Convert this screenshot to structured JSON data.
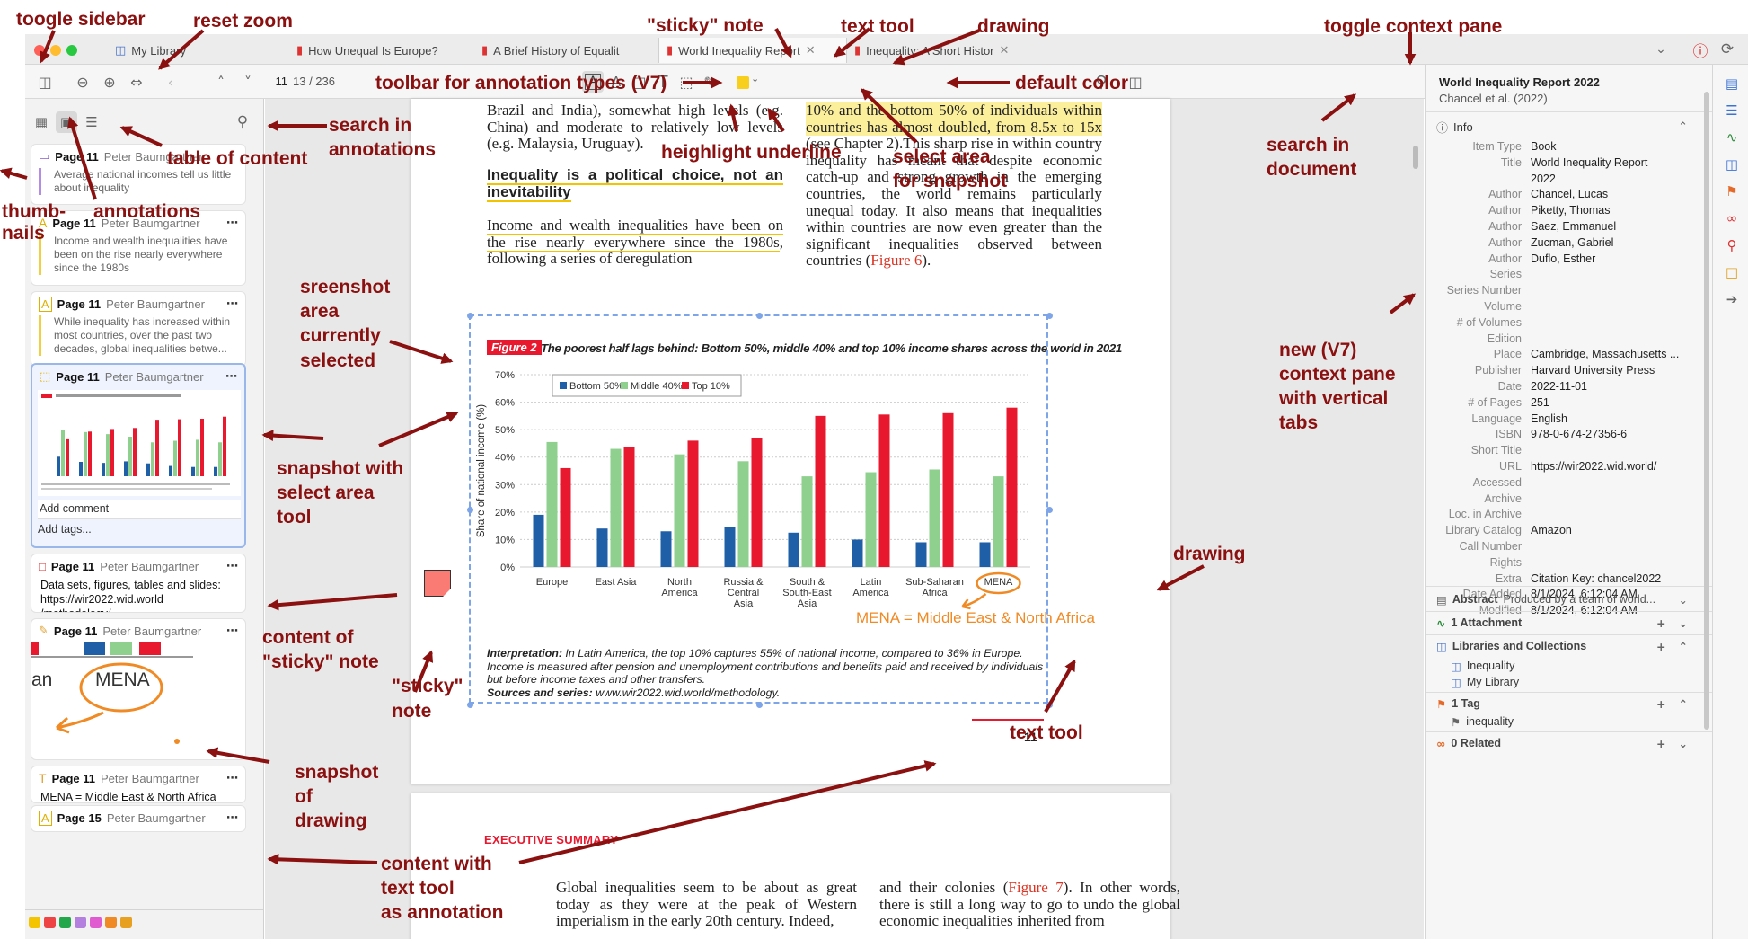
{
  "tabs": [
    {
      "label": "My Library"
    },
    {
      "label": "How Unequal Is Europe?"
    },
    {
      "label": "A Brief History of Equalit"
    },
    {
      "label": "World Inequality Report"
    },
    {
      "label": "Inequality: A Short Histor"
    }
  ],
  "toolbar": {
    "page_number": "11",
    "page_count": "13 / 236"
  },
  "sidebar": {
    "cards": [
      {
        "page": "Page 11",
        "author": "Peter Baumgartner",
        "text": "Average national incomes tell us little about inequality"
      },
      {
        "page": "Page 11",
        "author": "Peter Baumgartner",
        "text": "Income and wealth inequalities have been on the rise nearly everywhere since the 1980s"
      },
      {
        "page": "Page 11",
        "author": "Peter Baumgartner",
        "text": "While inequality has increased within most countries, over the past two decades, global inequalities betwe..."
      },
      {
        "page": "Page 11",
        "author": "Peter Baumgartner",
        "comment": "Add comment",
        "tags": "Add tags..."
      },
      {
        "page": "Page 11",
        "author": "Peter Baumgartner",
        "text": "Data sets, figures, tables and slides: https://wir2022.wid.world /methodology/"
      },
      {
        "page": "Page 11",
        "author": "Peter Baumgartner",
        "drawing_label": "MENA",
        "drawing_prefix": "an"
      },
      {
        "page": "Page 11",
        "author": "Peter Baumgartner",
        "text": "MENA = Middle East & North Africa"
      },
      {
        "page": "Page 15",
        "author": "Peter Baumgartner"
      }
    ],
    "colors": [
      "#f5c400",
      "#ef4444",
      "#22a84a",
      "#b380e0",
      "#e05bd0",
      "#f08a24",
      "#e8a020"
    ]
  },
  "doc": {
    "col1a": "Brazil and India), somewhat high levels (e.g. China) and moderate to relatively low levels (e.g. Malaysia, Uruguay).",
    "heading": "Inequality is a political choice, not an inevitability",
    "col1b_hl": "Income and wealth inequalities have been on the rise nearly everywhere since the 1980s",
    "col1b_rest": ", following a series of deregulation",
    "col2_hl": "10% and the bottom 50% of individuals within countries has almost doubled, from 8.5x to 15x",
    "col2_rest": " (see Chapter 2).This sharp rise in within country inequality has meant that despite economic catch-up and strong growth in the emerging countries, the world remains particularly unequal today. It also means that inequalities within countries are now even greater than the significant inequalities observed between countries (",
    "col2_fig": "Figure 6",
    "col2_end": ").",
    "page_num": "11",
    "exec": "EXECUTIVE SUMMARY",
    "p2c1": "Global inequalities seem to be about as great today as they were at the peak of Western imperialism in the early 20th century. Indeed,",
    "p2c2a": "and their colonies (",
    "p2c2fig": "Figure 7",
    "p2c2b": "). In other words, there is still a long way to go to undo the global economic inequalities inherited from"
  },
  "chart_data": {
    "type": "bar",
    "figure_label": "Figure 2",
    "title": "The poorest half lags behind: Bottom 50%, middle 40% and top 10% income shares across the world in 2021",
    "ylabel": "Share of national income (%)",
    "ylim": [
      0,
      70
    ],
    "yticks": [
      "0%",
      "10%",
      "20%",
      "30%",
      "40%",
      "50%",
      "60%",
      "70%"
    ],
    "categories": [
      "Europe",
      "East Asia",
      "North America",
      "Russia & Central Asia",
      "South & South-East Asia",
      "Latin America",
      "Sub-Saharan Africa",
      "MENA"
    ],
    "series": [
      {
        "name": "Bottom 50%",
        "color": "#1f5fa8",
        "values": [
          19,
          14,
          13,
          14.5,
          12.5,
          10,
          9,
          9
        ]
      },
      {
        "name": "Middle 40%",
        "color": "#8fd08f",
        "values": [
          45.5,
          43,
          41,
          38.5,
          33,
          34.5,
          35.5,
          33
        ]
      },
      {
        "name": "Top 10%",
        "color": "#e8182e",
        "values": [
          36,
          43.5,
          46,
          47,
          55,
          55.5,
          56,
          58
        ]
      }
    ],
    "legend": "top-left",
    "interpretation_label": "Interpretation:",
    "interpretation": " In Latin America, the top 10% captures 55% of national income, compared to 36% in Europe. Income is measured after pension and unemployment contributions and benefits paid and received by individuals but before income taxes and other transfers.",
    "sources_label": "Sources and series:",
    "sources": " www.wir2022.wid.world/methodology.",
    "text_annotation": "MENA = Middle East & North Africa"
  },
  "context": {
    "title": "World Inequality Report 2022",
    "subtitle": "Chancel et al. (2022)",
    "info_label": "Info",
    "fields": [
      {
        "k": "Item Type",
        "v": "Book"
      },
      {
        "k": "Title",
        "v": "World Inequality Report",
        "v2": "2022"
      },
      {
        "k": "Author",
        "v": "Chancel,  Lucas"
      },
      {
        "k": "Author",
        "v": "Piketty,  Thomas"
      },
      {
        "k": "Author",
        "v": "Saez,  Emmanuel"
      },
      {
        "k": "Author",
        "v": "Zucman,  Gabriel"
      },
      {
        "k": "Author",
        "v": "Duflo,  Esther"
      },
      {
        "k": "Series",
        "v": ""
      },
      {
        "k": "Series Number",
        "v": ""
      },
      {
        "k": "Volume",
        "v": ""
      },
      {
        "k": "# of Volumes",
        "v": ""
      },
      {
        "k": "Edition",
        "v": ""
      },
      {
        "k": "Place",
        "v": "Cambridge, Massachusetts ..."
      },
      {
        "k": "Publisher",
        "v": "Harvard University Press"
      },
      {
        "k": "Date",
        "v": "2022-11-01"
      },
      {
        "k": "# of Pages",
        "v": "251"
      },
      {
        "k": "Language",
        "v": "English"
      },
      {
        "k": "ISBN",
        "v": "978-0-674-27356-6"
      },
      {
        "k": "Short Title",
        "v": ""
      },
      {
        "k": "URL",
        "v": "https://wir2022.wid.world/"
      },
      {
        "k": "Accessed",
        "v": ""
      },
      {
        "k": "Archive",
        "v": ""
      },
      {
        "k": "Loc. in Archive",
        "v": ""
      },
      {
        "k": "Library Catalog",
        "v": "Amazon"
      },
      {
        "k": "Call Number",
        "v": ""
      },
      {
        "k": "Rights",
        "v": ""
      },
      {
        "k": "Extra",
        "v": "Citation Key: chancel2022"
      },
      {
        "k": "Date Added",
        "v": "8/1/2024, 6:12:04 AM"
      },
      {
        "k": "Modified",
        "v": "8/1/2024, 6:12:04 AM"
      }
    ],
    "abstract_label": "Abstract",
    "abstract": "Produced by a team of world...",
    "attachment": "1 Attachment",
    "libraries": "Libraries and Collections",
    "lib1": "Inequality",
    "lib2": "My Library",
    "tags": "1 Tag",
    "tag1": "inequality",
    "related": "0 Related"
  },
  "notes": {
    "toggle_sidebar": "toogle sidebar",
    "reset_zoom": "reset zoom",
    "sticky_note": "\"sticky\" note",
    "text_tool": "text tool",
    "drawing": "drawing",
    "toggle_context": "toggle context pane",
    "toolbar_types": "toolbar for annotation types (V7)",
    "default_color": "default color",
    "search_ann_1": "search in",
    "search_ann_2": "annotations",
    "toc": "table of content",
    "highlight_underline": "heighlight underline",
    "select_area_1": "select area",
    "select_area_2": "for snapshot",
    "search_doc_1": "search in",
    "search_doc_2": "document",
    "thumbs_1": "thumb-",
    "thumbs_2": "nails",
    "annotations": "annotations",
    "screenshot_1": "sreenshot",
    "screenshot_2": "area",
    "screenshot_3": "currently",
    "screenshot_4": "selected",
    "snap_select_1": "snapshot with",
    "snap_select_2": "select area",
    "snap_select_3": "tool",
    "new_ctx_1": "new (V7)",
    "new_ctx_2": "context pane",
    "new_ctx_3": "with vertical",
    "new_ctx_4": "tabs",
    "drawing2": "drawing",
    "sticky_content_1": "content of",
    "sticky_content_2": "\"sticky\" note",
    "sticky2_1": "\"sticky\"",
    "sticky2_2": "note",
    "text_tool2": "text tool",
    "snap_draw_1": "snapshot",
    "snap_draw_2": "of",
    "snap_draw_3": "drawing",
    "text_content_1": "content with",
    "text_content_2": "text tool",
    "text_content_3": "as annotation"
  }
}
